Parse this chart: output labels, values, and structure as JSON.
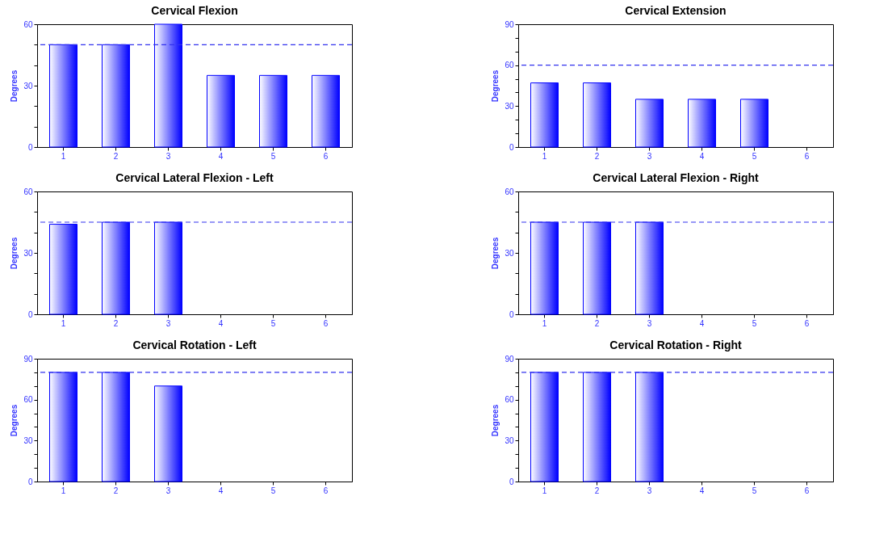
{
  "chart_data": [
    {
      "type": "bar",
      "title": "Cervical Flexion",
      "ylabel": "Degrees",
      "categories": [
        "1",
        "2",
        "3",
        "4",
        "5",
        "6"
      ],
      "values": [
        50,
        50,
        60,
        35,
        35,
        35
      ],
      "color": "#0000ff",
      "ylim": [
        0,
        60
      ],
      "yticks": [
        0,
        {
          "value": 10,
          "label": null
        },
        {
          "value": 20,
          "label": null
        },
        30,
        {
          "value": 40,
          "label": null
        },
        {
          "value": 50,
          "label": null
        },
        60
      ],
      "ref_lines": [
        {
          "axis": "y",
          "value": 50,
          "color": "#3333ee",
          "line_style": "dashed"
        }
      ],
      "grid": false,
      "legend": false
    },
    {
      "type": "bar",
      "title": "Cervical Extension",
      "ylabel": "Degrees",
      "categories": [
        "1",
        "2",
        "3",
        "4",
        "5",
        "6"
      ],
      "values": [
        47,
        47,
        35,
        35,
        35,
        null
      ],
      "color": "#0000ff",
      "ylim": [
        0,
        90
      ],
      "yticks": [
        0,
        {
          "value": 10,
          "label": null
        },
        {
          "value": 20,
          "label": null
        },
        30,
        {
          "value": 40,
          "label": null
        },
        {
          "value": 50,
          "label": null
        },
        60,
        {
          "value": 70,
          "label": null
        },
        {
          "value": 80,
          "label": null
        },
        90
      ],
      "ref_lines": [
        {
          "axis": "y",
          "value": 60,
          "color": "#3333ee",
          "line_style": "dashed"
        }
      ],
      "grid": false,
      "legend": false
    },
    {
      "type": "bar",
      "title": "Cervical Lateral Flexion - Left",
      "ylabel": "Degrees",
      "categories": [
        "1",
        "2",
        "3",
        "4",
        "5",
        "6"
      ],
      "values": [
        44,
        45,
        45,
        null,
        null,
        null
      ],
      "color": "#0000ff",
      "ylim": [
        0,
        60
      ],
      "yticks": [
        0,
        {
          "value": 10,
          "label": null
        },
        {
          "value": 20,
          "label": null
        },
        30,
        {
          "value": 40,
          "label": null
        },
        {
          "value": 50,
          "label": null
        },
        60
      ],
      "ref_lines": [
        {
          "axis": "y",
          "value": 45,
          "color": "#3333ee",
          "line_style": "dashed"
        }
      ],
      "grid": false,
      "legend": false
    },
    {
      "type": "bar",
      "title": "Cervical Lateral Flexion - Right",
      "ylabel": "Degrees",
      "categories": [
        "1",
        "2",
        "3",
        "4",
        "5",
        "6"
      ],
      "values": [
        45,
        45,
        45,
        null,
        null,
        null
      ],
      "color": "#0000ff",
      "ylim": [
        0,
        60
      ],
      "yticks": [
        0,
        {
          "value": 10,
          "label": null
        },
        {
          "value": 20,
          "label": null
        },
        30,
        {
          "value": 40,
          "label": null
        },
        {
          "value": 50,
          "label": null
        },
        60
      ],
      "ref_lines": [
        {
          "axis": "y",
          "value": 45,
          "color": "#3333ee",
          "line_style": "dashed"
        }
      ],
      "grid": false,
      "legend": false
    },
    {
      "type": "bar",
      "title": "Cervical Rotation - Left",
      "ylabel": "Degrees",
      "categories": [
        "1",
        "2",
        "3",
        "4",
        "5",
        "6"
      ],
      "values": [
        80,
        80,
        70,
        null,
        null,
        null
      ],
      "color": "#0000ff",
      "ylim": [
        0,
        90
      ],
      "yticks": [
        0,
        {
          "value": 10,
          "label": null
        },
        {
          "value": 20,
          "label": null
        },
        30,
        {
          "value": 40,
          "label": null
        },
        {
          "value": 50,
          "label": null
        },
        60,
        {
          "value": 70,
          "label": null
        },
        {
          "value": 80,
          "label": null
        },
        90
      ],
      "ref_lines": [
        {
          "axis": "y",
          "value": 80,
          "color": "#3333ee",
          "line_style": "dashed"
        }
      ],
      "grid": false,
      "legend": false
    },
    {
      "type": "bar",
      "title": "Cervical Rotation - Right",
      "ylabel": "Degrees",
      "categories": [
        "1",
        "2",
        "3",
        "4",
        "5",
        "6"
      ],
      "values": [
        80,
        80,
        80,
        null,
        null,
        null
      ],
      "color": "#0000ff",
      "ylim": [
        0,
        90
      ],
      "yticks": [
        0,
        {
          "value": 10,
          "label": null
        },
        {
          "value": 20,
          "label": null
        },
        30,
        {
          "value": 40,
          "label": null
        },
        {
          "value": 50,
          "label": null
        },
        60,
        {
          "value": 70,
          "label": null
        },
        {
          "value": 80,
          "label": null
        },
        90
      ],
      "ref_lines": [
        {
          "axis": "y",
          "value": 80,
          "color": "#3333ee",
          "line_style": "dashed"
        }
      ],
      "grid": false,
      "legend": false
    }
  ]
}
